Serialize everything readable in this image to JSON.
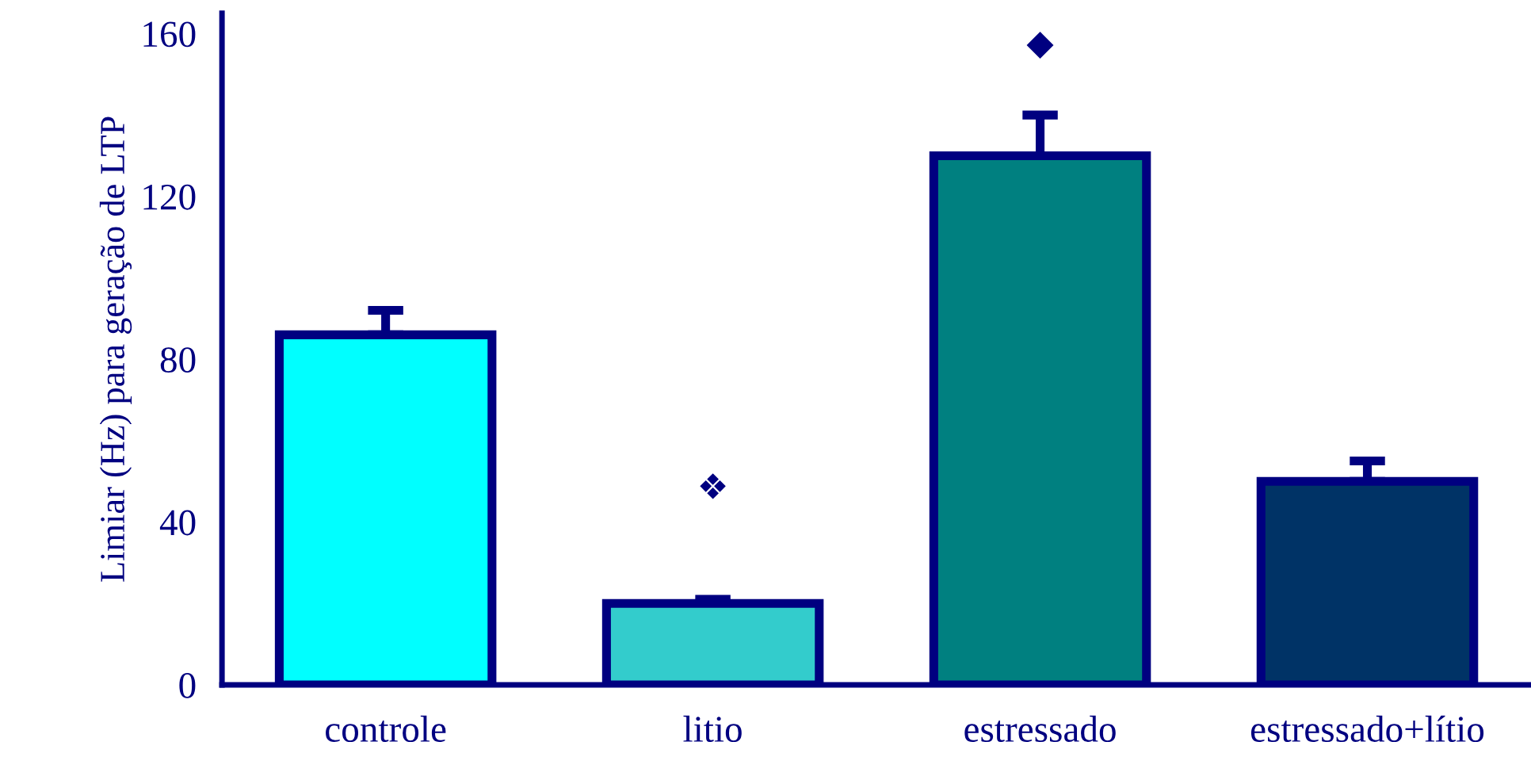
{
  "chart_data": {
    "type": "bar",
    "ylabel": "Limiar (Hz) para geração de LTP",
    "categories": [
      "controle",
      "litio",
      "estressado",
      "estressado+lítio"
    ],
    "values": [
      86,
      20,
      130,
      50
    ],
    "colors": [
      "#00ffff",
      "#33cccc",
      "#008080",
      "#003366"
    ],
    "errors": [
      [
        86,
        92
      ],
      [
        20,
        21
      ],
      [
        130,
        140
      ],
      [
        50,
        55
      ]
    ],
    "annotations": [
      "❖",
      "◆"
    ],
    "ylim": [
      0,
      165
    ],
    "yticks": [
      0,
      40,
      80,
      120,
      160
    ],
    "grid": false,
    "legend": false
  }
}
